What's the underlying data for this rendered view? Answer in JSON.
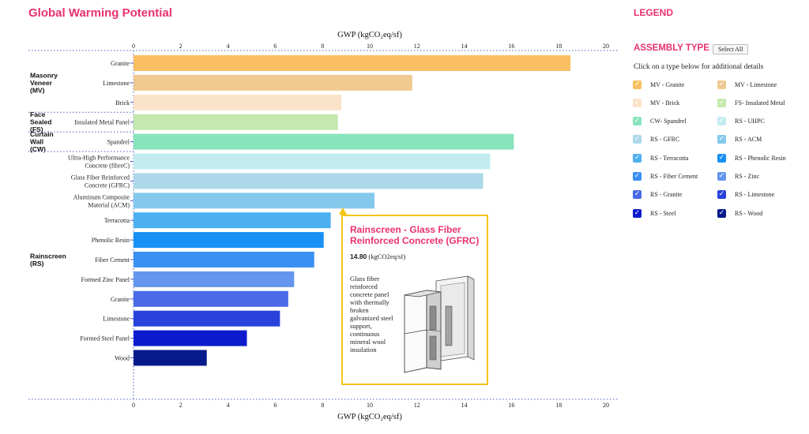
{
  "page": {
    "title": "Global Warming Potential"
  },
  "legend": {
    "title": "LEGEND",
    "assembly_type_title": "ASSEMBLY TYPE",
    "select_all_label": "Select All",
    "hint": "Click on a type below for additional details",
    "items": [
      {
        "label": "MV - Granite",
        "color": "#f9bf62"
      },
      {
        "label": "MV - Limestone",
        "color": "#f0c990"
      },
      {
        "label": "MV - Brick",
        "color": "#fae3c8"
      },
      {
        "label": "FS- Insulated Metal",
        "color": "#c4e8ae"
      },
      {
        "label": "CW- Spandrel",
        "color": "#88e4bc"
      },
      {
        "label": "RS - UHPC",
        "color": "#c4ecf0"
      },
      {
        "label": "RS - GFRC",
        "color": "#acd8ea"
      },
      {
        "label": "RS - ACM",
        "color": "#84c8ec"
      },
      {
        "label": "RS - Terracotta",
        "color": "#4cb0f0"
      },
      {
        "label": "RS - Phenolic Resin",
        "color": "#1890f5"
      },
      {
        "label": "RS - Fiber Cement",
        "color": "#3a90f2"
      },
      {
        "label": "RS - Zinc",
        "color": "#6496ee"
      },
      {
        "label": "RS - Granite",
        "color": "#4a6ae8"
      },
      {
        "label": "RS - Limestone",
        "color": "#2a42dc"
      },
      {
        "label": "RS - Steel",
        "color": "#0c1ccc"
      },
      {
        "label": "RS - Wood",
        "color": "#061a8c"
      }
    ]
  },
  "tooltip": {
    "title": "Rainscreen - Glass Fiber Reinforced Concrete (GFRC)",
    "value": "14.80",
    "unit": "(kgCO2eq/sf)",
    "description": "Glass fiber reinforced concrete panel with thermally broken galvanized steel support, continuous mineral wool insulation",
    "image_icon": "gfrc-panel-assembly-drawing"
  },
  "chart_data": {
    "type": "bar",
    "orientation": "horizontal",
    "xlabel": "GWP (kgCO₂eq/sf)",
    "xlim": [
      0,
      20
    ],
    "xticks": [
      0,
      2,
      4,
      6,
      8,
      10,
      12,
      14,
      16,
      18,
      20
    ],
    "grid": false,
    "groups": [
      {
        "label": "Masonry Veneer (MV)",
        "label_lines": [
          "Masonry",
          "Veneer",
          "(MV)"
        ],
        "bars": [
          {
            "label_lines": [
              "Granite"
            ],
            "value": 18.5,
            "color": "#f9bf62"
          },
          {
            "label_lines": [
              "Limestone"
            ],
            "value": 11.8,
            "color": "#f0c990"
          },
          {
            "label_lines": [
              "Brick"
            ],
            "value": 8.8,
            "color": "#fae3c8"
          }
        ]
      },
      {
        "label": "Face Sealed (FS)",
        "label_lines": [
          "Face",
          "Sealed",
          "(FS)"
        ],
        "bars": [
          {
            "label_lines": [
              "Insulated Metal Panel"
            ],
            "value": 8.65,
            "color": "#c4e8ae"
          }
        ]
      },
      {
        "label": "Curtain Wall (CW)",
        "label_lines": [
          "Curtain",
          "Wall",
          "(CW)"
        ],
        "bars": [
          {
            "label_lines": [
              "Spandrel"
            ],
            "value": 16.1,
            "color": "#88e4bc"
          }
        ]
      },
      {
        "label": "Rainscreen (RS)",
        "label_lines": [
          "Rainscreen",
          "(RS)"
        ],
        "bars": [
          {
            "label_lines": [
              "Ultra-High Performance",
              "Concrete (fibreC)"
            ],
            "value": 15.1,
            "color": "#c4ecf0"
          },
          {
            "label_lines": [
              "Glass Fiber Reinforced",
              "Concrete (GFRC)"
            ],
            "value": 14.8,
            "color": "#acd8ea"
          },
          {
            "label_lines": [
              "Aluminum Composite",
              "Material (ACM)"
            ],
            "value": 10.2,
            "color": "#84c8ec"
          },
          {
            "label_lines": [
              "Terracotta"
            ],
            "value": 8.35,
            "color": "#4cb0f0"
          },
          {
            "label_lines": [
              "Phenolic Resin"
            ],
            "value": 8.05,
            "color": "#1890f5"
          },
          {
            "label_lines": [
              "Fiber Cement"
            ],
            "value": 7.65,
            "color": "#3a90f2"
          },
          {
            "label_lines": [
              "Formed Zinc Panel"
            ],
            "value": 6.8,
            "color": "#6496ee"
          },
          {
            "label_lines": [
              "Granite"
            ],
            "value": 6.55,
            "color": "#4a6ae8"
          },
          {
            "label_lines": [
              "Limestone"
            ],
            "value": 6.2,
            "color": "#2a42dc"
          },
          {
            "label_lines": [
              "Formed Steel Panel"
            ],
            "value": 4.8,
            "color": "#0c1ccc"
          },
          {
            "label_lines": [
              "Wood"
            ],
            "value": 3.1,
            "color": "#061a8c"
          }
        ]
      }
    ]
  }
}
